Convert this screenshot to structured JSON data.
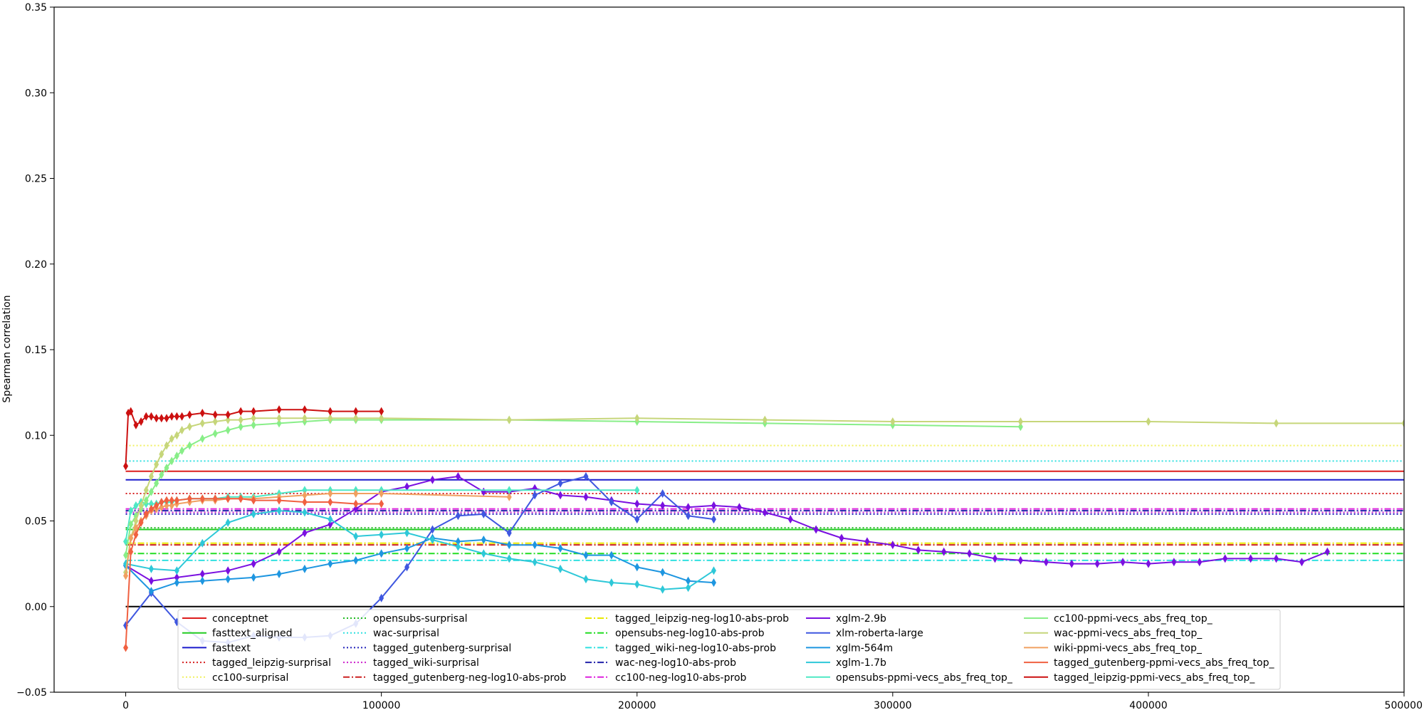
{
  "chart_data": {
    "type": "line",
    "ylabel": "Spearman correlation",
    "xlim": [
      -28000,
      500000
    ],
    "ylim": [
      -0.05,
      0.35
    ],
    "x_ticks": [
      0,
      100000,
      200000,
      300000,
      400000,
      500000
    ],
    "y_ticks": [
      -0.05,
      0.0,
      0.05,
      0.1,
      0.15,
      0.2,
      0.25,
      0.3,
      0.35
    ],
    "x_tick_labels": [
      "0",
      "100000",
      "200000",
      "300000",
      "400000",
      "500000"
    ],
    "y_tick_labels": [
      "−0.05",
      "0.00",
      "0.05",
      "0.10",
      "0.15",
      "0.20",
      "0.25",
      "0.30",
      "0.35"
    ],
    "zero_line": 0,
    "legend_position": "lower-center",
    "baselines": [
      {
        "name": "conceptnet",
        "value": 0.079,
        "color": "#dd1c1c",
        "style": "solid"
      },
      {
        "name": "fasttext_aligned",
        "value": 0.045,
        "color": "#22cc22",
        "style": "solid"
      },
      {
        "name": "fasttext",
        "value": 0.074,
        "color": "#1a1acc",
        "style": "solid"
      },
      {
        "name": "tagged_leipzig-surprisal",
        "value": 0.066,
        "color": "#d62020",
        "style": "dotted"
      },
      {
        "name": "cc100-surprisal",
        "value": 0.094,
        "color": "#f0f060",
        "style": "dotted"
      },
      {
        "name": "opensubs-surprisal",
        "value": 0.046,
        "color": "#22bb22",
        "style": "dotted"
      },
      {
        "name": "wac-surprisal",
        "value": 0.085,
        "color": "#30e0e0",
        "style": "dotted"
      },
      {
        "name": "tagged_gutenberg-surprisal",
        "value": 0.054,
        "color": "#2222bb",
        "style": "dotted"
      },
      {
        "name": "tagged_wiki-surprisal",
        "value": 0.055,
        "color": "#cc22cc",
        "style": "dotted"
      },
      {
        "name": "tagged_gutenberg-neg-log10-abs-prob",
        "value": 0.036,
        "color": "#cc2222",
        "style": "dashdot"
      },
      {
        "name": "tagged_leipzig-neg-log10-abs-prob",
        "value": 0.037,
        "color": "#e8e800",
        "style": "dashdot"
      },
      {
        "name": "opensubs-neg-log10-abs-prob",
        "value": 0.031,
        "color": "#22dd22",
        "style": "dashdot"
      },
      {
        "name": "tagged_wiki-neg-log10-abs-prob",
        "value": 0.027,
        "color": "#30e0e0",
        "style": "dashdot"
      },
      {
        "name": "wac-neg-log10-abs-prob",
        "value": 0.056,
        "color": "#2222aa",
        "style": "dashdot"
      },
      {
        "name": "cc100-neg-log10-abs-prob",
        "value": 0.057,
        "color": "#dd22dd",
        "style": "dashdot"
      }
    ],
    "series": [
      {
        "name": "xglm-2.9b",
        "color": "#7a10e0",
        "x": [
          0,
          10000,
          20000,
          30000,
          40000,
          50000,
          60000,
          70000,
          80000,
          90000,
          100000,
          110000,
          120000,
          130000,
          140000,
          150000,
          160000,
          170000,
          180000,
          190000,
          200000,
          210000,
          220000,
          230000,
          240000,
          250000,
          260000,
          270000,
          280000,
          290000,
          300000,
          310000,
          320000,
          330000,
          340000,
          350000,
          360000,
          370000,
          380000,
          390000,
          400000,
          410000,
          420000,
          430000,
          440000,
          450000,
          460000,
          470000
        ],
        "y": [
          0.024,
          0.015,
          0.017,
          0.019,
          0.021,
          0.025,
          0.032,
          0.043,
          0.048,
          0.057,
          0.067,
          0.07,
          0.074,
          0.076,
          0.067,
          0.067,
          0.069,
          0.065,
          0.064,
          0.062,
          0.06,
          0.059,
          0.058,
          0.059,
          0.058,
          0.055,
          0.051,
          0.045,
          0.04,
          0.038,
          0.036,
          0.033,
          0.032,
          0.031,
          0.028,
          0.027,
          0.026,
          0.025,
          0.025,
          0.026,
          0.025,
          0.026,
          0.026,
          0.028,
          0.028,
          0.028,
          0.026,
          0.032
        ]
      },
      {
        "name": "xlm-roberta-large",
        "color": "#3f57e0",
        "x": [
          0,
          10000,
          20000,
          30000,
          40000,
          50000,
          60000,
          70000,
          80000,
          90000,
          100000,
          110000,
          120000,
          130000,
          140000,
          150000,
          160000,
          170000,
          180000,
          190000,
          200000,
          210000,
          220000,
          230000
        ],
        "y": [
          -0.011,
          0.008,
          -0.009,
          -0.02,
          -0.021,
          -0.017,
          -0.018,
          -0.018,
          -0.017,
          -0.01,
          0.005,
          0.023,
          0.045,
          0.053,
          0.054,
          0.043,
          0.065,
          0.072,
          0.076,
          0.061,
          0.051,
          0.066,
          0.053,
          0.051
        ]
      },
      {
        "name": "xglm-564m",
        "color": "#1e96e0",
        "x": [
          0,
          10000,
          20000,
          30000,
          40000,
          50000,
          60000,
          70000,
          80000,
          90000,
          100000,
          110000,
          120000,
          130000,
          140000,
          150000,
          160000,
          170000,
          180000,
          190000,
          200000,
          210000,
          220000,
          230000
        ],
        "y": [
          0.024,
          0.009,
          0.014,
          0.015,
          0.016,
          0.017,
          0.019,
          0.022,
          0.025,
          0.027,
          0.031,
          0.034,
          0.04,
          0.038,
          0.039,
          0.036,
          0.036,
          0.034,
          0.03,
          0.03,
          0.023,
          0.02,
          0.015,
          0.014
        ]
      },
      {
        "name": "xglm-1.7b",
        "color": "#2ec8d8",
        "x": [
          0,
          10000,
          20000,
          30000,
          40000,
          50000,
          60000,
          70000,
          80000,
          90000,
          100000,
          110000,
          120000,
          130000,
          140000,
          150000,
          160000,
          170000,
          180000,
          190000,
          200000,
          210000,
          220000,
          230000
        ],
        "y": [
          0.025,
          0.022,
          0.021,
          0.037,
          0.049,
          0.054,
          0.056,
          0.055,
          0.051,
          0.041,
          0.042,
          0.043,
          0.039,
          0.035,
          0.031,
          0.028,
          0.026,
          0.022,
          0.016,
          0.014,
          0.013,
          0.01,
          0.011,
          0.021
        ]
      },
      {
        "name": "opensubs-ppmi-vecs_abs_freq_top_",
        "color": "#4ee8c4",
        "x": [
          0,
          2000,
          4000,
          6000,
          8000,
          10000,
          12000,
          14000,
          16000,
          18000,
          20000,
          25000,
          30000,
          35000,
          40000,
          45000,
          50000,
          60000,
          70000,
          80000,
          90000,
          100000,
          150000,
          200000
        ],
        "y": [
          0.038,
          0.056,
          0.059,
          0.061,
          0.06,
          0.06,
          0.06,
          0.061,
          0.061,
          0.061,
          0.062,
          0.063,
          0.063,
          0.063,
          0.064,
          0.064,
          0.064,
          0.066,
          0.068,
          0.068,
          0.068,
          0.068,
          0.068,
          0.068
        ]
      },
      {
        "name": "cc100-ppmi-vecs_abs_freq_top_",
        "color": "#88ee88",
        "x": [
          0,
          2000,
          4000,
          6000,
          8000,
          10000,
          12000,
          14000,
          16000,
          18000,
          20000,
          22000,
          25000,
          30000,
          35000,
          40000,
          45000,
          50000,
          60000,
          70000,
          80000,
          90000,
          100000,
          150000,
          200000,
          250000,
          300000,
          350000
        ],
        "y": [
          0.03,
          0.048,
          0.053,
          0.057,
          0.062,
          0.067,
          0.072,
          0.077,
          0.081,
          0.085,
          0.088,
          0.091,
          0.094,
          0.098,
          0.101,
          0.103,
          0.105,
          0.106,
          0.107,
          0.108,
          0.109,
          0.109,
          0.109,
          0.109,
          0.108,
          0.107,
          0.106,
          0.105
        ]
      },
      {
        "name": "wac-ppmi-vecs_abs_freq_top_",
        "color": "#c6d67a",
        "x": [
          0,
          2000,
          4000,
          6000,
          8000,
          10000,
          12000,
          14000,
          16000,
          18000,
          20000,
          22000,
          25000,
          30000,
          35000,
          40000,
          45000,
          50000,
          60000,
          70000,
          80000,
          90000,
          100000,
          150000,
          200000,
          250000,
          300000,
          350000,
          400000,
          450000,
          500000
        ],
        "y": [
          0.02,
          0.04,
          0.05,
          0.059,
          0.068,
          0.076,
          0.083,
          0.089,
          0.094,
          0.098,
          0.1,
          0.103,
          0.105,
          0.107,
          0.108,
          0.109,
          0.109,
          0.11,
          0.11,
          0.11,
          0.11,
          0.11,
          0.11,
          0.109,
          0.11,
          0.109,
          0.108,
          0.108,
          0.108,
          0.107,
          0.107
        ]
      },
      {
        "name": "wiki-ppmi-vecs_abs_freq_top_",
        "color": "#f0a060",
        "x": [
          0,
          2000,
          4000,
          6000,
          8000,
          10000,
          12000,
          14000,
          16000,
          18000,
          20000,
          25000,
          30000,
          35000,
          40000,
          45000,
          50000,
          60000,
          70000,
          80000,
          90000,
          100000,
          150000
        ],
        "y": [
          0.018,
          0.04,
          0.046,
          0.05,
          0.053,
          0.056,
          0.057,
          0.058,
          0.059,
          0.059,
          0.06,
          0.061,
          0.062,
          0.062,
          0.063,
          0.063,
          0.063,
          0.064,
          0.065,
          0.066,
          0.066,
          0.066,
          0.064
        ]
      },
      {
        "name": "tagged_gutenberg-ppmi-vecs_abs_freq_top_",
        "color": "#f06040",
        "x": [
          0,
          2000,
          4000,
          6000,
          8000,
          10000,
          12000,
          14000,
          16000,
          18000,
          20000,
          25000,
          30000,
          35000,
          40000,
          45000,
          50000,
          60000,
          70000,
          80000,
          90000,
          100000
        ],
        "y": [
          -0.024,
          0.032,
          0.042,
          0.049,
          0.054,
          0.057,
          0.059,
          0.061,
          0.062,
          0.062,
          0.062,
          0.063,
          0.063,
          0.063,
          0.063,
          0.063,
          0.062,
          0.062,
          0.061,
          0.061,
          0.06,
          0.06
        ]
      },
      {
        "name": "tagged_leipzig-ppmi-vecs_abs_freq_top_",
        "color": "#cc1010",
        "x": [
          0,
          1000,
          2000,
          4000,
          6000,
          8000,
          10000,
          12000,
          14000,
          16000,
          18000,
          20000,
          22000,
          25000,
          30000,
          35000,
          40000,
          45000,
          50000,
          60000,
          70000,
          80000,
          90000,
          100000
        ],
        "y": [
          0.082,
          0.113,
          0.114,
          0.106,
          0.108,
          0.111,
          0.111,
          0.11,
          0.11,
          0.11,
          0.111,
          0.111,
          0.111,
          0.112,
          0.113,
          0.112,
          0.112,
          0.114,
          0.114,
          0.115,
          0.115,
          0.114,
          0.114,
          0.114
        ]
      }
    ],
    "legend_order": [
      "conceptnet",
      "fasttext_aligned",
      "fasttext",
      "tagged_leipzig-surprisal",
      "cc100-surprisal",
      "opensubs-surprisal",
      "wac-surprisal",
      "tagged_gutenberg-surprisal",
      "tagged_wiki-surprisal",
      "tagged_gutenberg-neg-log10-abs-prob",
      "tagged_leipzig-neg-log10-abs-prob",
      "opensubs-neg-log10-abs-prob",
      "tagged_wiki-neg-log10-abs-prob",
      "wac-neg-log10-abs-prob",
      "cc100-neg-log10-abs-prob",
      "xglm-2.9b",
      "xlm-roberta-large",
      "xglm-564m",
      "xglm-1.7b",
      "opensubs-ppmi-vecs_abs_freq_top_",
      "cc100-ppmi-vecs_abs_freq_top_",
      "wac-ppmi-vecs_abs_freq_top_",
      "wiki-ppmi-vecs_abs_freq_top_",
      "tagged_gutenberg-ppmi-vecs_abs_freq_top_",
      "tagged_leipzig-ppmi-vecs_abs_freq_top_"
    ]
  }
}
